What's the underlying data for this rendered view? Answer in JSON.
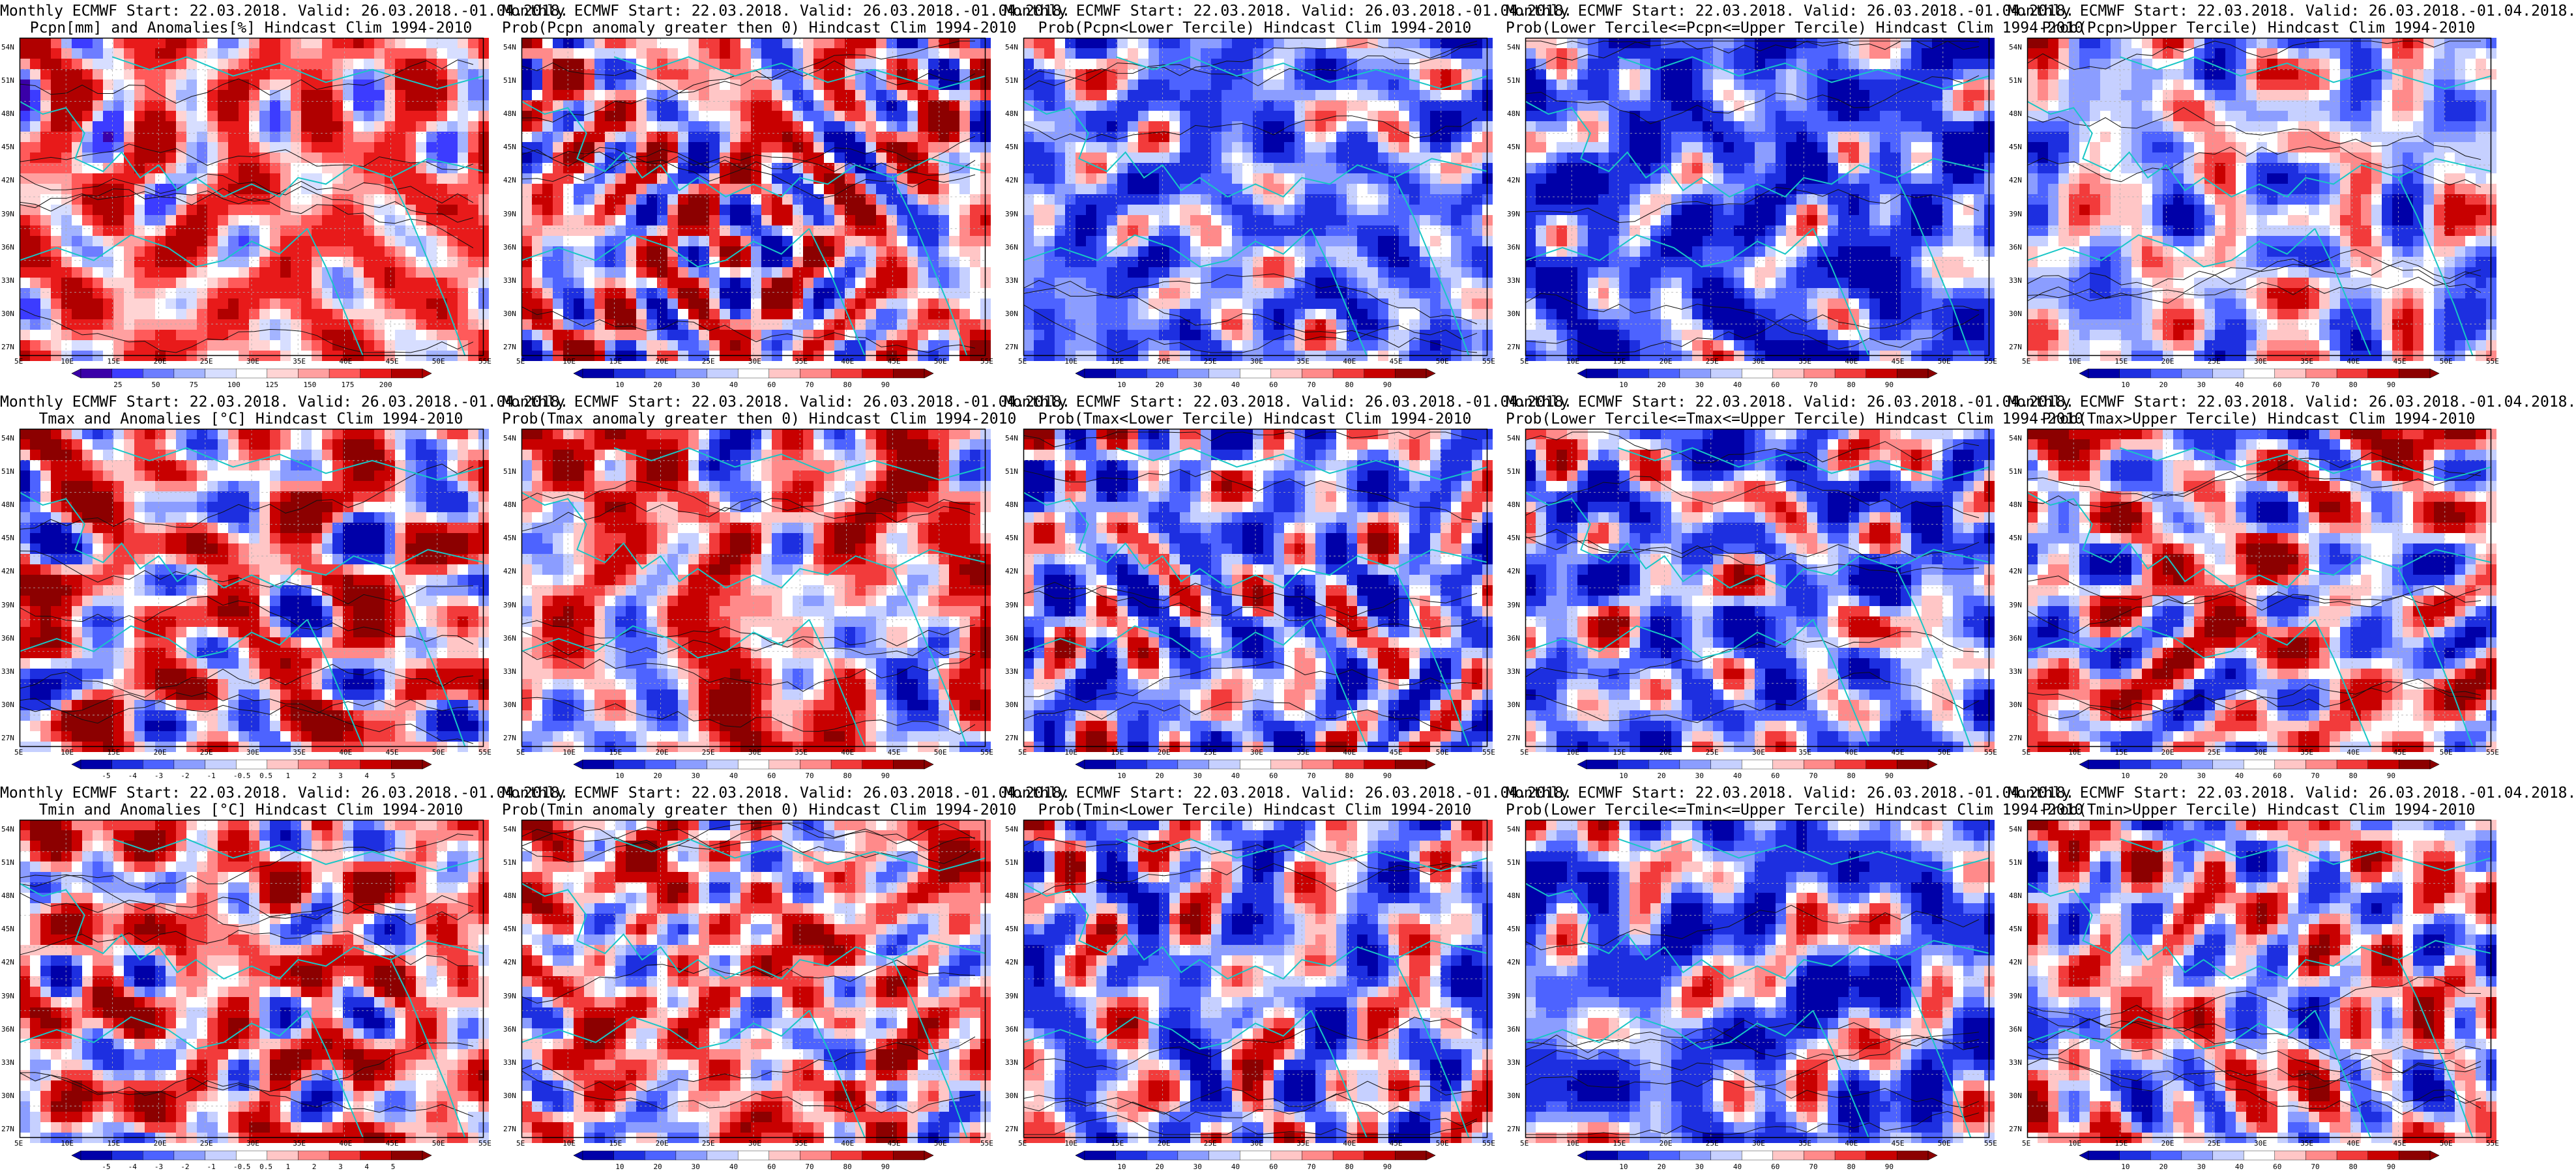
{
  "figure": {
    "columns": 5,
    "rows": 3,
    "lat_ticks": [
      "54N",
      "51N",
      "48N",
      "45N",
      "42N",
      "39N",
      "36N",
      "33N",
      "30N",
      "27N"
    ],
    "lon_ticks": [
      "5E",
      "10E",
      "15E",
      "20E",
      "25E",
      "30E",
      "35E",
      "40E",
      "45E",
      "50E",
      "55E"
    ],
    "palette_precip_anom": [
      "#3a00a8",
      "#3c3cff",
      "#6d7dff",
      "#a3b4ff",
      "#d7deff",
      "#ffffff",
      "#ffd4d4",
      "#ffa0a0",
      "#ff5a5a",
      "#e81a1a",
      "#b00000"
    ],
    "palette_prob": [
      "#0000a8",
      "#1d2fe0",
      "#4d63ff",
      "#8b9dff",
      "#c6d0ff",
      "#ffffff",
      "#ffc6c6",
      "#ff8a8a",
      "#f23b3b",
      "#c80000",
      "#8c0000"
    ],
    "colors": {
      "coast": "#18c6c6",
      "contour": "#111111"
    }
  },
  "panels": [
    {
      "title": [
        "Monthly ECMWF Start: 22.03.2018. Valid: 26.03.2018.-01.04.2018.",
        "Pcpn[mm] and Anomalies[%] Hindcast Clim 1994-2010"
      ],
      "palette": "precip",
      "bias": 0.6,
      "seed": 11,
      "cbar": [
        "25",
        "50",
        "75",
        "100",
        "125",
        "150",
        "175",
        "200"
      ]
    },
    {
      "title": [
        "Monthly ECMWF Start: 22.03.2018. Valid: 26.03.2018.-01.04.2018.",
        "Prob(Pcpn anomaly greater then 0) Hindcast Clim 1994-2010"
      ],
      "palette": "prob",
      "bias": 0.15,
      "seed": 12,
      "cbar": [
        "10",
        "20",
        "30",
        "40",
        "60",
        "70",
        "80",
        "90"
      ]
    },
    {
      "title": [
        "Monthly ECMWF Start: 22.03.2018. Valid: 26.03.2018.-01.04.2018.",
        "Prob(Pcpn<Lower Tercile) Hindcast Clim 1994-2010"
      ],
      "palette": "prob",
      "bias": -0.55,
      "seed": 13,
      "cbar": [
        "10",
        "20",
        "30",
        "40",
        "60",
        "70",
        "80",
        "90"
      ]
    },
    {
      "title": [
        "Monthly ECMWF Start: 22.03.2018. Valid: 26.03.2018.-01.04.2018.",
        "Prob(Lower Tercile<=Pcpn<=Upper Tercile) Hindcast Clim 1994-2010"
      ],
      "palette": "prob",
      "bias": -0.9,
      "seed": 14,
      "cbar": [
        "10",
        "20",
        "30",
        "40",
        "60",
        "70",
        "80",
        "90"
      ]
    },
    {
      "title": [
        "Monthly ECMWF Start: 22.03.2018. Valid: 26.03.2018.-01.04.2018.",
        "Prob(Pcpn>Upper Tercile) Hindcast Clim 1994-2010"
      ],
      "palette": "prob",
      "bias": -0.2,
      "seed": 15,
      "cbar": [
        "10",
        "20",
        "30",
        "40",
        "60",
        "70",
        "80",
        "90"
      ]
    },
    {
      "title": [
        "Monthly ECMWF Start: 22.03.2018. Valid: 26.03.2018.-01.04.2018.",
        "Tmax and Anomalies [°C] Hindcast Clim 1994-2010"
      ],
      "palette": "temp",
      "bias": 0.3,
      "seed": 21,
      "cbar": [
        "-5",
        "-4",
        "-3",
        "-2",
        "-1",
        "-0.5",
        "0.5",
        "1",
        "2",
        "3",
        "4",
        "5"
      ]
    },
    {
      "title": [
        "Monthly ECMWF Start: 22.03.2018. Valid: 26.03.2018.-01.04.2018.",
        "Prob(Tmax anomaly greater then 0) Hindcast Clim 1994-2010"
      ],
      "palette": "prob",
      "bias": 0.35,
      "seed": 22,
      "cbar": [
        "10",
        "20",
        "30",
        "40",
        "60",
        "70",
        "80",
        "90"
      ]
    },
    {
      "title": [
        "Monthly ECMWF Start: 22.03.2018. Valid: 26.03.2018.-01.04.2018.",
        "Prob(Tmax<Lower Tercile) Hindcast Clim 1994-2010"
      ],
      "palette": "prob",
      "bias": -0.4,
      "seed": 23,
      "cbar": [
        "10",
        "20",
        "30",
        "40",
        "60",
        "70",
        "80",
        "90"
      ]
    },
    {
      "title": [
        "Monthly ECMWF Start: 22.03.2018. Valid: 26.03.2018.-01.04.2018.",
        "Prob(Lower Tercile<=Tmax<=Upper Tercile) Hindcast Clim 1994-2010"
      ],
      "palette": "prob",
      "bias": -0.5,
      "seed": 24,
      "cbar": [
        "10",
        "20",
        "30",
        "40",
        "60",
        "70",
        "80",
        "90"
      ]
    },
    {
      "title": [
        "Monthly ECMWF Start: 22.03.2018. Valid: 26.03.2018.-01.04.2018.",
        "Prob(Tmax>Upper Tercile) Hindcast Clim 1994-2010"
      ],
      "palette": "prob",
      "bias": 0.1,
      "seed": 25,
      "cbar": [
        "10",
        "20",
        "30",
        "40",
        "60",
        "70",
        "80",
        "90"
      ]
    },
    {
      "title": [
        "Monthly ECMWF Start: 22.03.2018. Valid: 26.03.2018.-01.04.2018.",
        "Tmin and Anomalies [°C] Hindcast Clim 1994-2010"
      ],
      "palette": "temp",
      "bias": 0.35,
      "seed": 31,
      "cbar": [
        "-5",
        "-4",
        "-3",
        "-2",
        "-1",
        "-0.5",
        "0.5",
        "1",
        "2",
        "3",
        "4",
        "5"
      ]
    },
    {
      "title": [
        "Monthly ECMWF Start: 22.03.2018. Valid: 26.03.2018.-01.04.2018.",
        "Prob(Tmin anomaly greater then 0) Hindcast Clim 1994-2010"
      ],
      "palette": "prob",
      "bias": 0.3,
      "seed": 32,
      "cbar": [
        "10",
        "20",
        "30",
        "40",
        "60",
        "70",
        "80",
        "90"
      ]
    },
    {
      "title": [
        "Monthly ECMWF Start: 22.03.2018. Valid: 26.03.2018.-01.04.2018.",
        "Prob(Tmin<Lower Tercile) Hindcast Clim 1994-2010"
      ],
      "palette": "prob",
      "bias": -0.3,
      "seed": 33,
      "cbar": [
        "10",
        "20",
        "30",
        "40",
        "60",
        "70",
        "80",
        "90"
      ]
    },
    {
      "title": [
        "Monthly ECMWF Start: 22.03.2018. Valid: 26.03.2018.-01.04.2018.",
        "Prob(Lower Tercile<=Tmin<=Upper Tercile) Hindcast Clim 1994-2010"
      ],
      "palette": "prob",
      "bias": -0.6,
      "seed": 34,
      "cbar": [
        "10",
        "20",
        "30",
        "40",
        "60",
        "70",
        "80",
        "90"
      ]
    },
    {
      "title": [
        "Monthly ECMWF Start: 22.03.2018. Valid: 26.03.2018.-01.04.2018.",
        "Prob(Tmin>Upper Tercile) Hindcast Clim 1994-2010"
      ],
      "palette": "prob",
      "bias": 0.0,
      "seed": 35,
      "cbar": [
        "10",
        "20",
        "30",
        "40",
        "60",
        "70",
        "80",
        "90"
      ]
    }
  ]
}
